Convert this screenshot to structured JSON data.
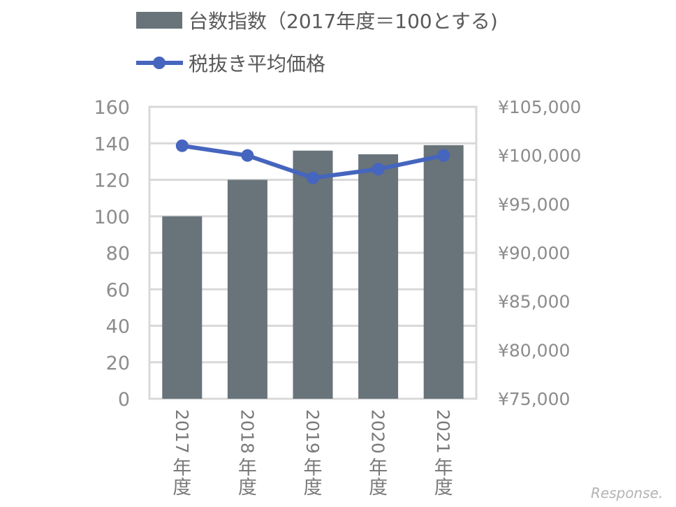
{
  "chart_data": {
    "type": "bar",
    "categories": [
      "2017年度",
      "2018年度",
      "2019年度",
      "2020年度",
      "2021年度"
    ],
    "category_years": [
      "2017",
      "2018",
      "2019",
      "2020",
      "2021"
    ],
    "category_suffix": [
      "年",
      "度"
    ],
    "series": [
      {
        "name": "台数指数（2017年度＝100とする)",
        "type": "bar",
        "axis": "left",
        "color": "#68737a",
        "values": [
          100,
          120,
          136,
          134,
          139
        ]
      },
      {
        "name": "税抜き平均価格",
        "type": "line",
        "axis": "right",
        "color": "#4565be",
        "values": [
          101000,
          100000,
          97700,
          98600,
          100000
        ]
      }
    ],
    "y_left": {
      "ylim": [
        0,
        160
      ],
      "ticks": [
        "0",
        "20",
        "40",
        "60",
        "80",
        "100",
        "120",
        "140",
        "160"
      ]
    },
    "y_right": {
      "ylim": [
        75000,
        105000
      ],
      "ticks": [
        "¥75,000",
        "¥80,000",
        "¥85,000",
        "¥90,000",
        "¥95,000",
        "¥100,000",
        "¥105,000"
      ]
    },
    "grid": true,
    "legend_position": "top-center"
  },
  "watermark": "Response."
}
